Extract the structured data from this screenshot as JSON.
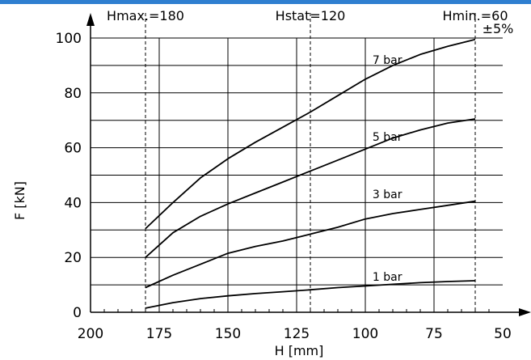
{
  "colors": {
    "top_bar": "#2f7fd0",
    "ink": "#000000"
  },
  "chart_data": {
    "type": "line",
    "xlabel": "H [mm]",
    "ylabel": "F [kN]",
    "xlim": [
      200,
      50
    ],
    "ylim": [
      0,
      100
    ],
    "x_reversed": true,
    "grid": true,
    "xticks": [
      200,
      175,
      150,
      125,
      100,
      75,
      50
    ],
    "yticks": [
      0,
      20,
      40,
      60,
      80,
      100
    ],
    "tolerance_label": "±5%",
    "reference_lines": [
      {
        "label": "Hmax.=180",
        "x": 180
      },
      {
        "label": "Hstat=120",
        "x": 120
      },
      {
        "label": "Hmin.=60",
        "x": 60
      }
    ],
    "series": [
      {
        "name": "7 bar",
        "x": [
          180,
          170,
          160,
          150,
          140,
          130,
          120,
          110,
          100,
          90,
          80,
          70,
          60
        ],
        "y": [
          30.5,
          40,
          49,
          56,
          62,
          67.5,
          73,
          79,
          85,
          90,
          94,
          97,
          99.5
        ]
      },
      {
        "name": "5 bar",
        "x": [
          180,
          170,
          160,
          150,
          140,
          130,
          120,
          110,
          100,
          90,
          80,
          70,
          60
        ],
        "y": [
          20,
          29,
          35,
          39.5,
          43.5,
          47.5,
          51.5,
          55.5,
          59.5,
          63.5,
          66.5,
          69,
          70.5
        ]
      },
      {
        "name": "3 bar",
        "x": [
          180,
          170,
          160,
          150,
          140,
          130,
          120,
          110,
          100,
          90,
          80,
          70,
          60
        ],
        "y": [
          9,
          13.5,
          17.5,
          21.5,
          24,
          26,
          28.5,
          31,
          34,
          36,
          37.5,
          39,
          40.5
        ]
      },
      {
        "name": "1 bar",
        "x": [
          180,
          170,
          160,
          150,
          140,
          130,
          120,
          110,
          100,
          90,
          80,
          70,
          60
        ],
        "y": [
          1.5,
          3.5,
          5,
          6,
          6.8,
          7.5,
          8.2,
          9,
          9.6,
          10.2,
          10.8,
          11.2,
          11.5
        ]
      }
    ]
  }
}
